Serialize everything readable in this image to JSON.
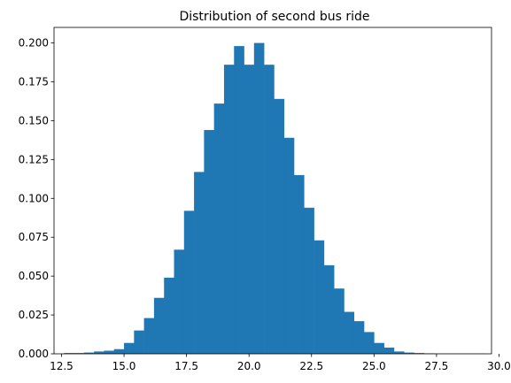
{
  "chart_data": {
    "type": "bar",
    "title": "Distribution of second bus ride",
    "xlabel": "",
    "ylabel": "",
    "xlim": [
      12.2,
      29.7
    ],
    "ylim": [
      0,
      0.21
    ],
    "grid": false,
    "bar_color": "#1f77b4",
    "bin_width": 0.4,
    "x_ticks": [
      12.5,
      15.0,
      17.5,
      20.0,
      22.5,
      25.0,
      27.5,
      30.0
    ],
    "x_tick_labels": [
      "12.5",
      "15.0",
      "17.5",
      "20.0",
      "22.5",
      "25.0",
      "27.5",
      "30.0"
    ],
    "y_ticks": [
      0.0,
      0.025,
      0.05,
      0.075,
      0.1,
      0.125,
      0.15,
      0.175,
      0.2
    ],
    "y_tick_labels": [
      "0.000",
      "0.025",
      "0.050",
      "0.075",
      "0.100",
      "0.125",
      "0.150",
      "0.175",
      "0.200"
    ],
    "bin_starts": [
      12.6,
      13.0,
      13.4,
      13.8,
      14.2,
      14.6,
      15.0,
      15.4,
      15.8,
      16.2,
      16.6,
      17.0,
      17.4,
      17.8,
      18.2,
      18.6,
      19.0,
      19.4,
      19.8,
      20.2,
      20.6,
      21.0,
      21.4,
      21.8,
      22.2,
      22.6,
      23.0,
      23.4,
      23.8,
      24.2,
      24.6,
      25.0,
      25.4,
      25.8,
      26.2,
      26.6,
      27.0,
      27.4,
      27.8,
      28.2,
      28.6,
      29.0
    ],
    "values": [
      0.0005,
      0.0005,
      0.0008,
      0.0015,
      0.002,
      0.003,
      0.007,
      0.015,
      0.023,
      0.036,
      0.049,
      0.067,
      0.092,
      0.117,
      0.144,
      0.161,
      0.186,
      0.198,
      0.186,
      0.2,
      0.186,
      0.164,
      0.139,
      0.115,
      0.094,
      0.073,
      0.057,
      0.042,
      0.027,
      0.021,
      0.014,
      0.007,
      0.004,
      0.0015,
      0.0008,
      0.0005,
      0.0003,
      0.0001,
      0.0001,
      0.0001,
      0.0001,
      0.0001
    ]
  }
}
